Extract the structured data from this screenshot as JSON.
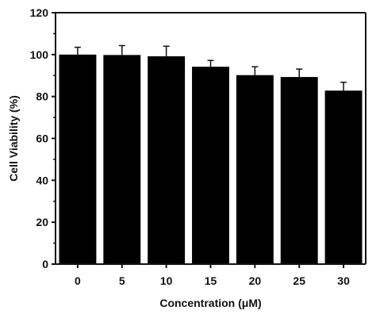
{
  "chart_data": {
    "type": "bar",
    "title": "",
    "xlabel": "Concentration (μM)",
    "ylabel": "Cell Viability (%)",
    "categories": [
      "0",
      "5",
      "10",
      "15",
      "20",
      "25",
      "30"
    ],
    "values": [
      100,
      99.8,
      99.2,
      94.2,
      90.2,
      89.3,
      82.8
    ],
    "errors": [
      3.5,
      4.5,
      4.8,
      3.0,
      4.0,
      3.8,
      4.0
    ],
    "ylim": [
      0,
      120
    ],
    "yticks": [
      "0",
      "20",
      "40",
      "60",
      "80",
      "100",
      "120"
    ],
    "grid": false,
    "bar_color": "#000000",
    "axis_color": "#111111"
  }
}
